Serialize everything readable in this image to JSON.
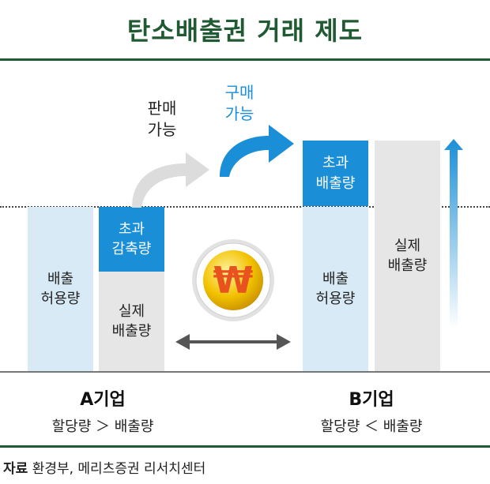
{
  "title": "탄소배출권 거래 제도",
  "company_a": {
    "name": "A기업",
    "relation": "할당량 ＞ 배출량",
    "allowance_label": [
      "배출",
      "허용량"
    ],
    "excess_reduction_label": [
      "초과",
      "감축량"
    ],
    "actual_emission_label": [
      "실제",
      "배출량"
    ]
  },
  "company_b": {
    "name": "B기업",
    "relation": "할당량 ＜ 배출량",
    "allowance_label": [
      "배출",
      "허용량"
    ],
    "excess_emission_label": [
      "초과",
      "배출량"
    ],
    "actual_emission_label": [
      "실제",
      "배출량"
    ]
  },
  "sell_label": [
    "판매",
    "가능"
  ],
  "buy_label": [
    "구매",
    "가능"
  ],
  "coin_symbol": "₩",
  "source": {
    "prefix": "자료",
    "text": "환경부, 메리츠증권 리서치센터"
  },
  "colors": {
    "title": "#1f5a32",
    "blue": "#1a8fd8",
    "light_blue": "#d9eaf7",
    "gray": "#e6e6e6",
    "coin_gold": "#f2c200",
    "coin_symbol": "#e8521e"
  }
}
